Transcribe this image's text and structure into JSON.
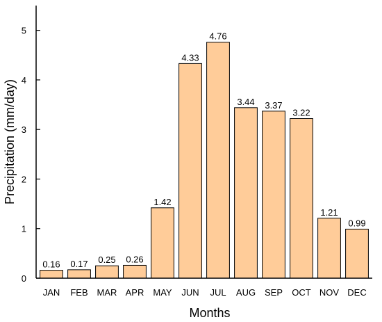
{
  "chart_data": {
    "type": "bar",
    "title": "",
    "xlabel": "Months",
    "ylabel": "Precipitation (mm/day)",
    "ylim": [
      0,
      5.5
    ],
    "yticks": [
      0,
      1,
      2,
      3,
      4,
      5
    ],
    "grid": false,
    "legend": "none",
    "categories": [
      "JAN",
      "FEB",
      "MAR",
      "APR",
      "MAY",
      "JUN",
      "JUL",
      "AUG",
      "SEP",
      "OCT",
      "NOV",
      "DEC"
    ],
    "values": [
      0.16,
      0.17,
      0.25,
      0.26,
      1.42,
      4.33,
      4.76,
      3.44,
      3.37,
      3.22,
      1.21,
      0.99
    ],
    "data_labels": [
      "0.16",
      "0.17",
      "0.25",
      "0.26",
      "1.42",
      "4.33",
      "4.76",
      "3.44",
      "3.37",
      "3.22",
      "1.21",
      "0.99"
    ],
    "bar_color": "#FFCC99",
    "bar_edge_color": "#000000"
  }
}
